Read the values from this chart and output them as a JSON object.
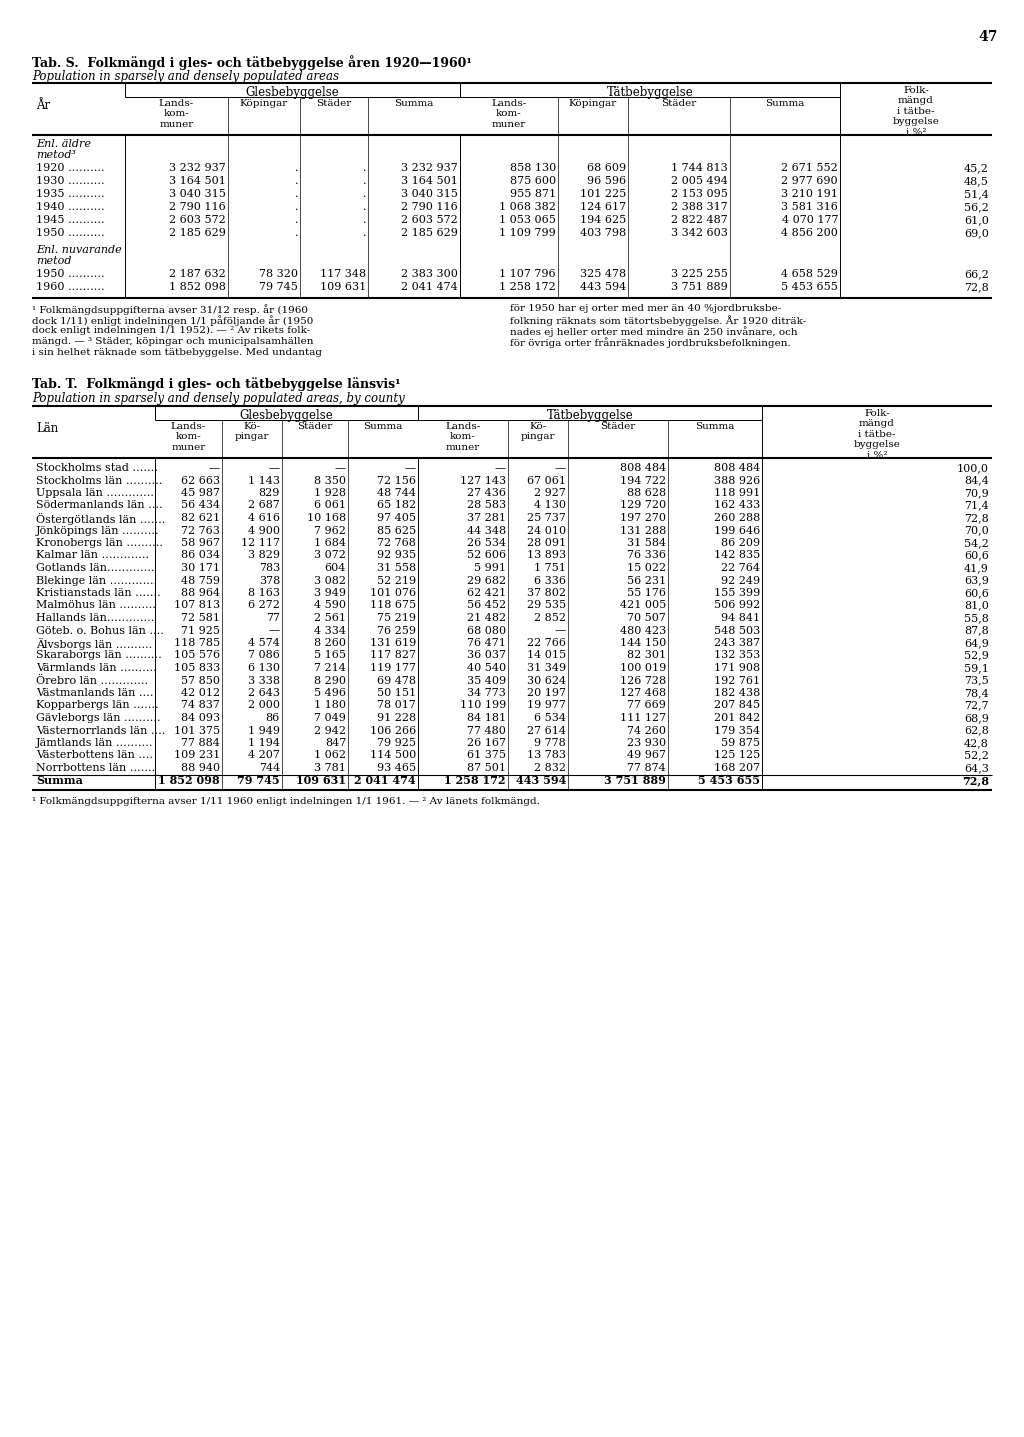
{
  "page_number": "47",
  "table_s_title": "Tab. S.  Folkmängd i gles- och tätbebyggelse åren 1920—1960¹",
  "table_s_subtitle": "Population in sparsely and densely populated areas",
  "table_s_data": [
    [
      "1920 ……….",
      "3 232 937",
      ".",
      ".",
      "3 232 937",
      "858 130",
      "68 609",
      "1 744 813",
      "2 671 552",
      "45,2"
    ],
    [
      "1930 ……….",
      "3 164 501",
      ".",
      ".",
      "3 164 501",
      "875 600",
      "96 596",
      "2 005 494",
      "2 977 690",
      "48,5"
    ],
    [
      "1935 ……….",
      "3 040 315",
      ".",
      ".",
      "3 040 315",
      "955 871",
      "101 225",
      "2 153 095",
      "3 210 191",
      "51,4"
    ],
    [
      "1940 ……….",
      "2 790 116",
      ".",
      ".",
      "2 790 116",
      "1 068 382",
      "124 617",
      "2 388 317",
      "3 581 316",
      "56,2"
    ],
    [
      "1945 ……….",
      "2 603 572",
      ".",
      ".",
      "2 603 572",
      "1 053 065",
      "194 625",
      "2 822 487",
      "4 070 177",
      "61,0"
    ],
    [
      "1950 ……….",
      "2 185 629",
      ".",
      ".",
      "2 185 629",
      "1 109 799",
      "403 798",
      "3 342 603",
      "4 856 200",
      "69,0"
    ]
  ],
  "table_s_data2": [
    [
      "1950 ……….",
      "2 187 632",
      "78 320",
      "117 348",
      "2 383 300",
      "1 107 796",
      "325 478",
      "3 225 255",
      "4 658 529",
      "66,2"
    ],
    [
      "1960 ……….",
      "1 852 098",
      "79 745",
      "109 631",
      "2 041 474",
      "1 258 172",
      "443 594",
      "3 751 889",
      "5 453 655",
      "72,8"
    ]
  ],
  "table_s_footnotes_left": [
    "¹ Folkmängdsuppgifterna avser 31/12 resp. år (1960",
    "dock 1/11) enligt indelningen 1/1 påföljande år (1950",
    "dock enligt indelningen 1/1 1952). — ² Av rikets folk-",
    "mängd. — ³ Städer, köpingar och municipalsamhällen",
    "i sin helhet räknade som tätbebyggelse. Med undantag"
  ],
  "table_s_footnotes_right": [
    "för 1950 har ej orter med mer än 40 %jordbruksbe-",
    "folkning räknats som tätortsbebyggelse. År 1920 diträk-",
    "nades ej heller orter med mindre än 250 invånare, och",
    "för övriga orter frånräknades jordbruksbefolkningen.",
    ""
  ],
  "table_t_title": "Tab. T.  Folkmängd i gles- och tätbebyggelse länsvis¹",
  "table_t_subtitle": "Population in sparsely and densely populated areas, by county",
  "table_t_data": [
    [
      "Stockholms stad …….",
      "—",
      "—",
      "—",
      "—",
      "—",
      "—",
      "808 484",
      "808 484",
      "100,0"
    ],
    [
      "Stockholms län ……….",
      "62 663",
      "1 143",
      "8 350",
      "72 156",
      "127 143",
      "67 061",
      "194 722",
      "388 926",
      "84,4"
    ],
    [
      "Uppsala län ………….",
      "45 987",
      "829",
      "1 928",
      "48 744",
      "27 436",
      "2 927",
      "88 628",
      "118 991",
      "70,9"
    ],
    [
      "Södermanlands län ….",
      "56 434",
      "2 687",
      "6 061",
      "65 182",
      "28 583",
      "4 130",
      "129 720",
      "162 433",
      "71,4"
    ],
    [
      "Östergötlands län …….",
      "82 621",
      "4 616",
      "10 168",
      "97 405",
      "37 281",
      "25 737",
      "197 270",
      "260 288",
      "72,8"
    ],
    [
      "Jönköpings län ……….",
      "72 763",
      "4 900",
      "7 962",
      "85 625",
      "44 348",
      "24 010",
      "131 288",
      "199 646",
      "70,0"
    ],
    [
      "Kronobergs län ……….",
      "58 967",
      "12 117",
      "1 684",
      "72 768",
      "26 534",
      "28 091",
      "31 584",
      "86 209",
      "54,2"
    ],
    [
      "Kalmar län ………….",
      "86 034",
      "3 829",
      "3 072",
      "92 935",
      "52 606",
      "13 893",
      "76 336",
      "142 835",
      "60,6"
    ],
    [
      "Gotlands län………….",
      "30 171",
      "783",
      "604",
      "31 558",
      "5 991",
      "1 751",
      "15 022",
      "22 764",
      "41,9"
    ],
    [
      "Blekinge län ………….",
      "48 759",
      "378",
      "3 082",
      "52 219",
      "29 682",
      "6 336",
      "56 231",
      "92 249",
      "63,9"
    ],
    [
      "Kristianstads län …….",
      "88 964",
      "8 163",
      "3 949",
      "101 076",
      "62 421",
      "37 802",
      "55 176",
      "155 399",
      "60,6"
    ],
    [
      "Malmöhus län ……….",
      "107 813",
      "6 272",
      "4 590",
      "118 675",
      "56 452",
      "29 535",
      "421 005",
      "506 992",
      "81,0"
    ],
    [
      "Hallands län………….",
      "72 581",
      "77",
      "2 561",
      "75 219",
      "21 482",
      "2 852",
      "70 507",
      "94 841",
      "55,8"
    ],
    [
      "Göteb. o. Bohus län ….",
      "71 925",
      "—",
      "4 334",
      "76 259",
      "68 080",
      "—",
      "480 423",
      "548 503",
      "87,8"
    ],
    [
      "Älvsborgs län ……….",
      "118 785",
      "4 574",
      "8 260",
      "131 619",
      "76 471",
      "22 766",
      "144 150",
      "243 387",
      "64,9"
    ],
    [
      "Skaraborgs län ……….",
      "105 576",
      "7 086",
      "5 165",
      "117 827",
      "36 037",
      "14 015",
      "82 301",
      "132 353",
      "52,9"
    ],
    [
      "Värmlands län ……….",
      "105 833",
      "6 130",
      "7 214",
      "119 177",
      "40 540",
      "31 349",
      "100 019",
      "171 908",
      "59,1"
    ],
    [
      "Örebro län ………….",
      "57 850",
      "3 338",
      "8 290",
      "69 478",
      "35 409",
      "30 624",
      "126 728",
      "192 761",
      "73,5"
    ],
    [
      "Västmanlands län ….",
      "42 012",
      "2 643",
      "5 496",
      "50 151",
      "34 773",
      "20 197",
      "127 468",
      "182 438",
      "78,4"
    ],
    [
      "Kopparbergs län …….",
      "74 837",
      "2 000",
      "1 180",
      "78 017",
      "110 199",
      "19 977",
      "77 669",
      "207 845",
      "72,7"
    ],
    [
      "Gävleborgs län ……….",
      "84 093",
      "86",
      "7 049",
      "91 228",
      "84 181",
      "6 534",
      "111 127",
      "201 842",
      "68,9"
    ],
    [
      "Västernorrlands län ….",
      "101 375",
      "1 949",
      "2 942",
      "106 266",
      "77 480",
      "27 614",
      "74 260",
      "179 354",
      "62,8"
    ],
    [
      "Jämtlands län ……….",
      "77 884",
      "1 194",
      "847",
      "79 925",
      "26 167",
      "9 778",
      "23 930",
      "59 875",
      "42,8"
    ],
    [
      "Västerbottens län ….",
      "109 231",
      "4 207",
      "1 062",
      "114 500",
      "61 375",
      "13 783",
      "49 967",
      "125 125",
      "52,2"
    ],
    [
      "Norrbottens län …….",
      "88 940",
      "744",
      "3 781",
      "93 465",
      "87 501",
      "2 832",
      "77 874",
      "168 207",
      "64,3"
    ],
    [
      "Summa",
      "1 852 098",
      "79 745",
      "109 631",
      "2 041 474",
      "1 258 172",
      "443 594",
      "3 751 889",
      "5 453 655",
      "72,8"
    ]
  ],
  "table_t_footnote": "¹ Folkmängdsuppgifterna avser 1/11 1960 enligt indelningen 1/1 1961. — ² Av länets folkmängd."
}
